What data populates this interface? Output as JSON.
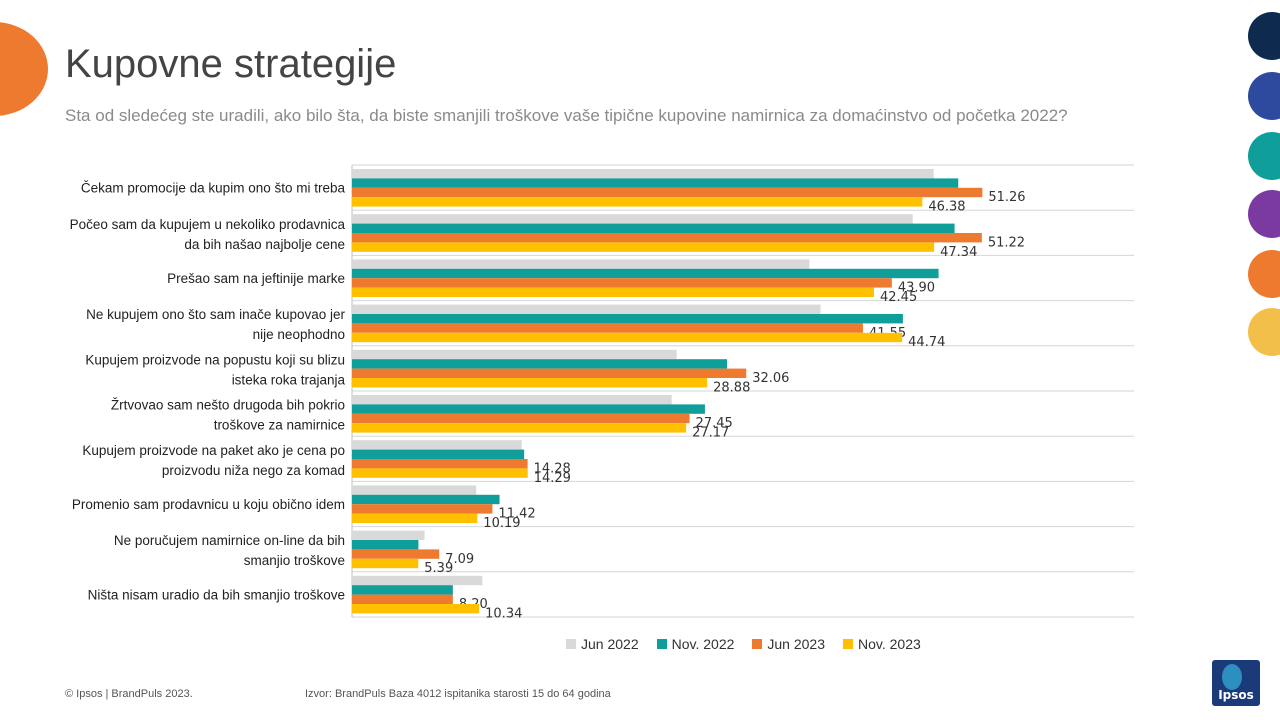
{
  "slide": {
    "title": "Kupovne strategije",
    "subtitle": "Sta od sledećeg ste uradili, ako bilo šta, da biste smanjili troškove vaše tipične kupovine namirnica za domaćinstvo od početka 2022?",
    "footer_copyright": "© Ipsos | BrandPuls 2023.",
    "footer_source": "Izvor: BrandPuls Baza 4012 ispitanika starosti 15 do 64 godina",
    "logo_text": "Ipsos",
    "accent_colors": [
      "#0e2a4f",
      "#2e4a9e",
      "#0f9e9a",
      "#7b3aa0",
      "#ee7a2f",
      "#f2c04a"
    ]
  },
  "chart_data": {
    "type": "bar",
    "orientation": "horizontal",
    "categories": [
      "Čekam promocije da kupim ono što mi treba",
      "Počeo sam da kupujem u nekoliko prodavnica\nda bih našao najbolje cene",
      "Prešao sam na jeftinije marke",
      "Ne kupujem ono što sam inače kupovao jer\nnije neophodno",
      "Kupujem proizvode na popustu koji su blizu\nisteka roka trajanja",
      "Žrtvovao sam nešto drugoda bih pokrio\ntroškove za namirnice",
      "Kupujem proizvode na paket ako je cena po\nproizvodu niža  nego za komad",
      "Promenio sam prodavnicu u koju obično idem",
      "Ne poručujem namirnice on-line da bih\nsmanjio troškove",
      "Ništa nisam uradio da bih smanjio troškove"
    ],
    "series": [
      {
        "name": "Jun 2022",
        "color": "#d9d9d9",
        "values": [
          47.3,
          45.6,
          37.2,
          38.1,
          26.4,
          26.0,
          13.8,
          10.1,
          5.9,
          10.6
        ],
        "labels": [
          "",
          "",
          "",
          "",
          "",
          "",
          "",
          "",
          "",
          ""
        ]
      },
      {
        "name": "Nov. 2022",
        "color": "#0f9e9a",
        "values": [
          49.3,
          49.0,
          47.7,
          44.8,
          30.5,
          28.7,
          14.0,
          12.0,
          5.4,
          8.2
        ],
        "labels": [
          "",
          "",
          "",
          "",
          "",
          "",
          "",
          "",
          "",
          ""
        ]
      },
      {
        "name": "Jun 2023",
        "color": "#ee7a2f",
        "values": [
          51.26,
          51.22,
          43.9,
          41.55,
          32.06,
          27.45,
          14.28,
          11.42,
          7.09,
          8.2
        ],
        "labels": [
          "51.26",
          "51.22",
          "43.90",
          "41.55",
          "32.06",
          "27.45",
          "14.28",
          "11.42",
          "7.09",
          "8.20"
        ]
      },
      {
        "name": "Nov. 2023",
        "color": "#ffc000",
        "values": [
          46.38,
          47.34,
          42.45,
          44.74,
          28.88,
          27.17,
          14.29,
          10.19,
          5.39,
          10.34
        ],
        "labels": [
          "46.38",
          "47.34",
          "42.45",
          "44.74",
          "28.88",
          "27.17",
          "14.29",
          "10.19",
          "5.39",
          "10.34"
        ]
      }
    ],
    "xlim": [
      0,
      60
    ],
    "grid": true,
    "legend_position": "bottom"
  }
}
